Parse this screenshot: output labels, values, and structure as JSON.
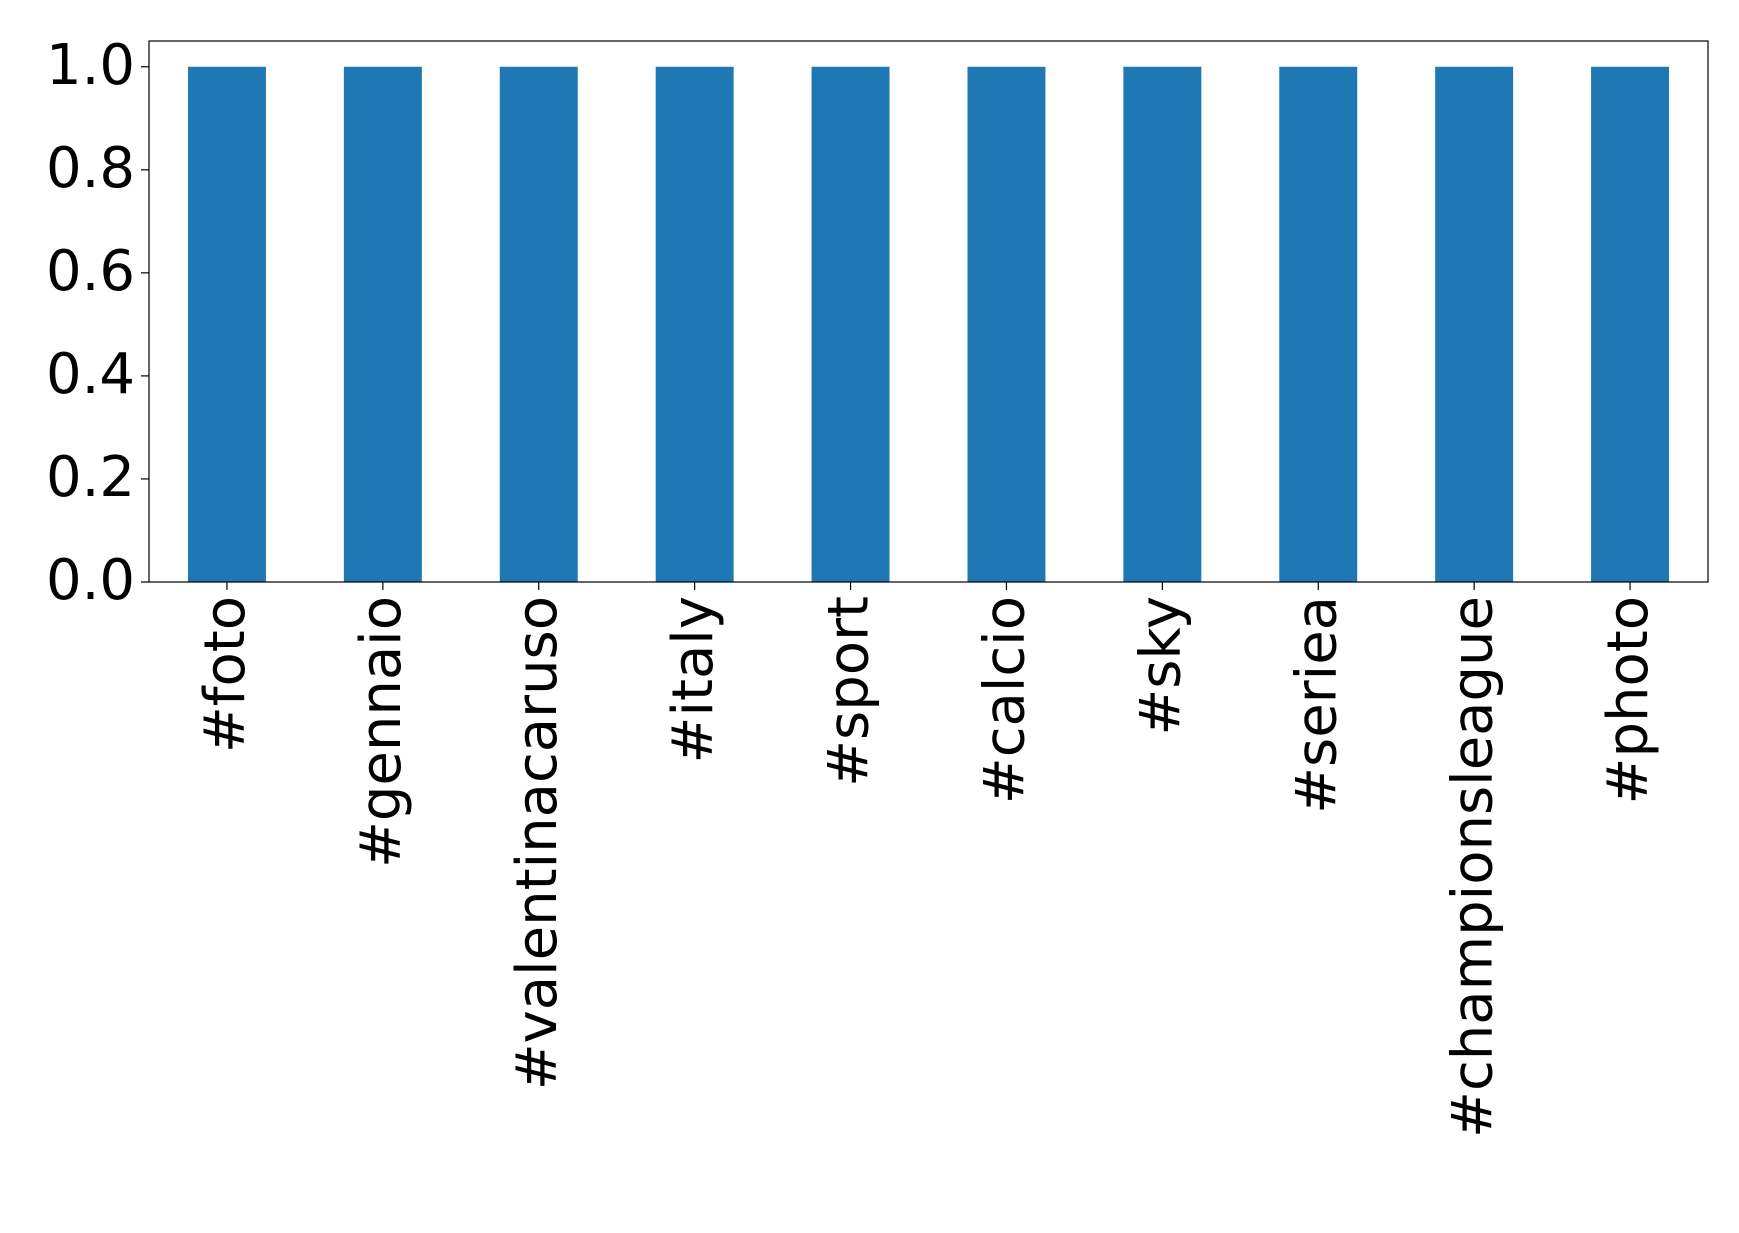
{
  "chart_data": {
    "type": "bar",
    "categories": [
      "#foto",
      "#gennaio",
      "#valentinacaruso",
      "#italy",
      "#sport",
      "#calcio",
      "#sky",
      "#seriea",
      "#championsleague",
      "#photo"
    ],
    "values": [
      1,
      1,
      1,
      1,
      1,
      1,
      1,
      1,
      1,
      1
    ],
    "color": "#1f77b4",
    "ylim": [
      0,
      1.05
    ],
    "yticks": [
      {
        "value": 0,
        "label": "0.0"
      },
      {
        "value": 0.2,
        "label": "0.2"
      },
      {
        "value": 0.4,
        "label": "0.4"
      },
      {
        "value": 0.6,
        "label": "0.6"
      },
      {
        "value": 0.8,
        "label": "0.8"
      },
      {
        "value": 1,
        "label": "1.0"
      }
    ],
    "grid": false
  }
}
